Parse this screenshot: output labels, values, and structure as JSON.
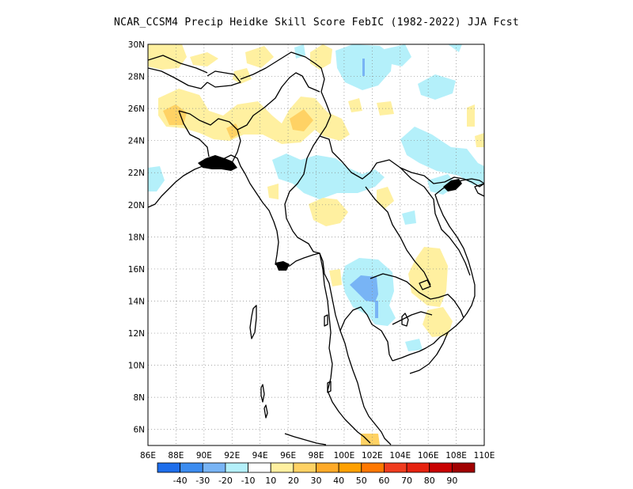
{
  "title": "NCAR_CCSM4 Precip Heidke Skill Score FebIC (1982-2022) JJA Fcst",
  "map": {
    "lon_min": 86,
    "lon_max": 110,
    "lat_min": 5,
    "lat_max": 30,
    "lon_ticks": [
      86,
      88,
      90,
      92,
      94,
      96,
      98,
      100,
      102,
      104,
      106,
      108,
      110
    ],
    "lon_labels": [
      "86E",
      "88E",
      "90E",
      "92E",
      "94E",
      "96E",
      "98E",
      "100E",
      "102E",
      "104E",
      "106E",
      "108E",
      "110E"
    ],
    "lat_ticks": [
      6,
      8,
      10,
      12,
      14,
      16,
      18,
      20,
      22,
      24,
      26,
      28,
      30
    ],
    "lat_labels": [
      "6N",
      "8N",
      "10N",
      "12N",
      "14N",
      "16N",
      "18N",
      "20N",
      "22N",
      "24N",
      "26N",
      "28N",
      "30N"
    ],
    "grid": "dotted"
  },
  "colorbar": {
    "colors": [
      "#1e6eeb",
      "#3c8cf0",
      "#78b4f5",
      "#b4f0fa",
      "#ffffff",
      "#fff0a0",
      "#ffd264",
      "#ffaa28",
      "#ffa000",
      "#ff7800",
      "#f03c1e",
      "#e6220f",
      "#c80000",
      "#a00000"
    ],
    "labels": [
      "-40",
      "-30",
      "-20",
      "-10",
      "10",
      "20",
      "30",
      "40",
      "50",
      "60",
      "70",
      "80",
      "90"
    ]
  },
  "chart_data": {
    "type": "heatmap",
    "title": "NCAR_CCSM4 Precip Heidke Skill Score FebIC (1982-2022) JJA Fcst",
    "x_range": [
      86,
      110
    ],
    "y_range": [
      5,
      30
    ],
    "levels": [
      -40,
      -30,
      -20,
      -10,
      10,
      20,
      30,
      40,
      50,
      60,
      70,
      80,
      90
    ],
    "features": [
      {
        "category": "10 to 20",
        "lon": 87.5,
        "lat": 29.3
      },
      {
        "category": "10 to 20",
        "lon": 93.0,
        "lat": 29.2
      },
      {
        "category": "10 to 20",
        "lon": 99.5,
        "lat": 29.0
      },
      {
        "category": "-10 to -20",
        "lon": 98.8,
        "lat": 28.5
      },
      {
        "category": "-10 to -20",
        "lon": 105.5,
        "lat": 27.3
      },
      {
        "category": "-20 to -30",
        "lon": 101.2,
        "lat": 28.5
      },
      {
        "category": "10 to 20",
        "lon": 89.5,
        "lat": 25.3
      },
      {
        "category": "20 to 30",
        "lon": 88.5,
        "lat": 24.8
      },
      {
        "category": "20 to 30",
        "lon": 96.0,
        "lat": 25.0
      },
      {
        "category": "10 to 20",
        "lon": 96.3,
        "lat": 24.6
      },
      {
        "category": "-10 to -20",
        "lon": 97.5,
        "lat": 21.5
      },
      {
        "category": "-10 to -20",
        "lon": 106.5,
        "lat": 22.5
      },
      {
        "category": "-10 to -20",
        "lon": 87.0,
        "lat": 21.5
      },
      {
        "category": "10 to 20",
        "lon": 98.0,
        "lat": 19.5
      },
      {
        "category": "-10 to -20",
        "lon": 101.3,
        "lat": 14.8
      },
      {
        "category": "-20 to -30",
        "lon": 100.5,
        "lat": 14.8
      },
      {
        "category": "10 to 20",
        "lon": 105.0,
        "lat": 16.0
      },
      {
        "category": "10 to 20",
        "lon": 105.5,
        "lat": 12.5
      },
      {
        "category": "20 to 30",
        "lon": 102.2,
        "lat": 5.2
      }
    ]
  }
}
